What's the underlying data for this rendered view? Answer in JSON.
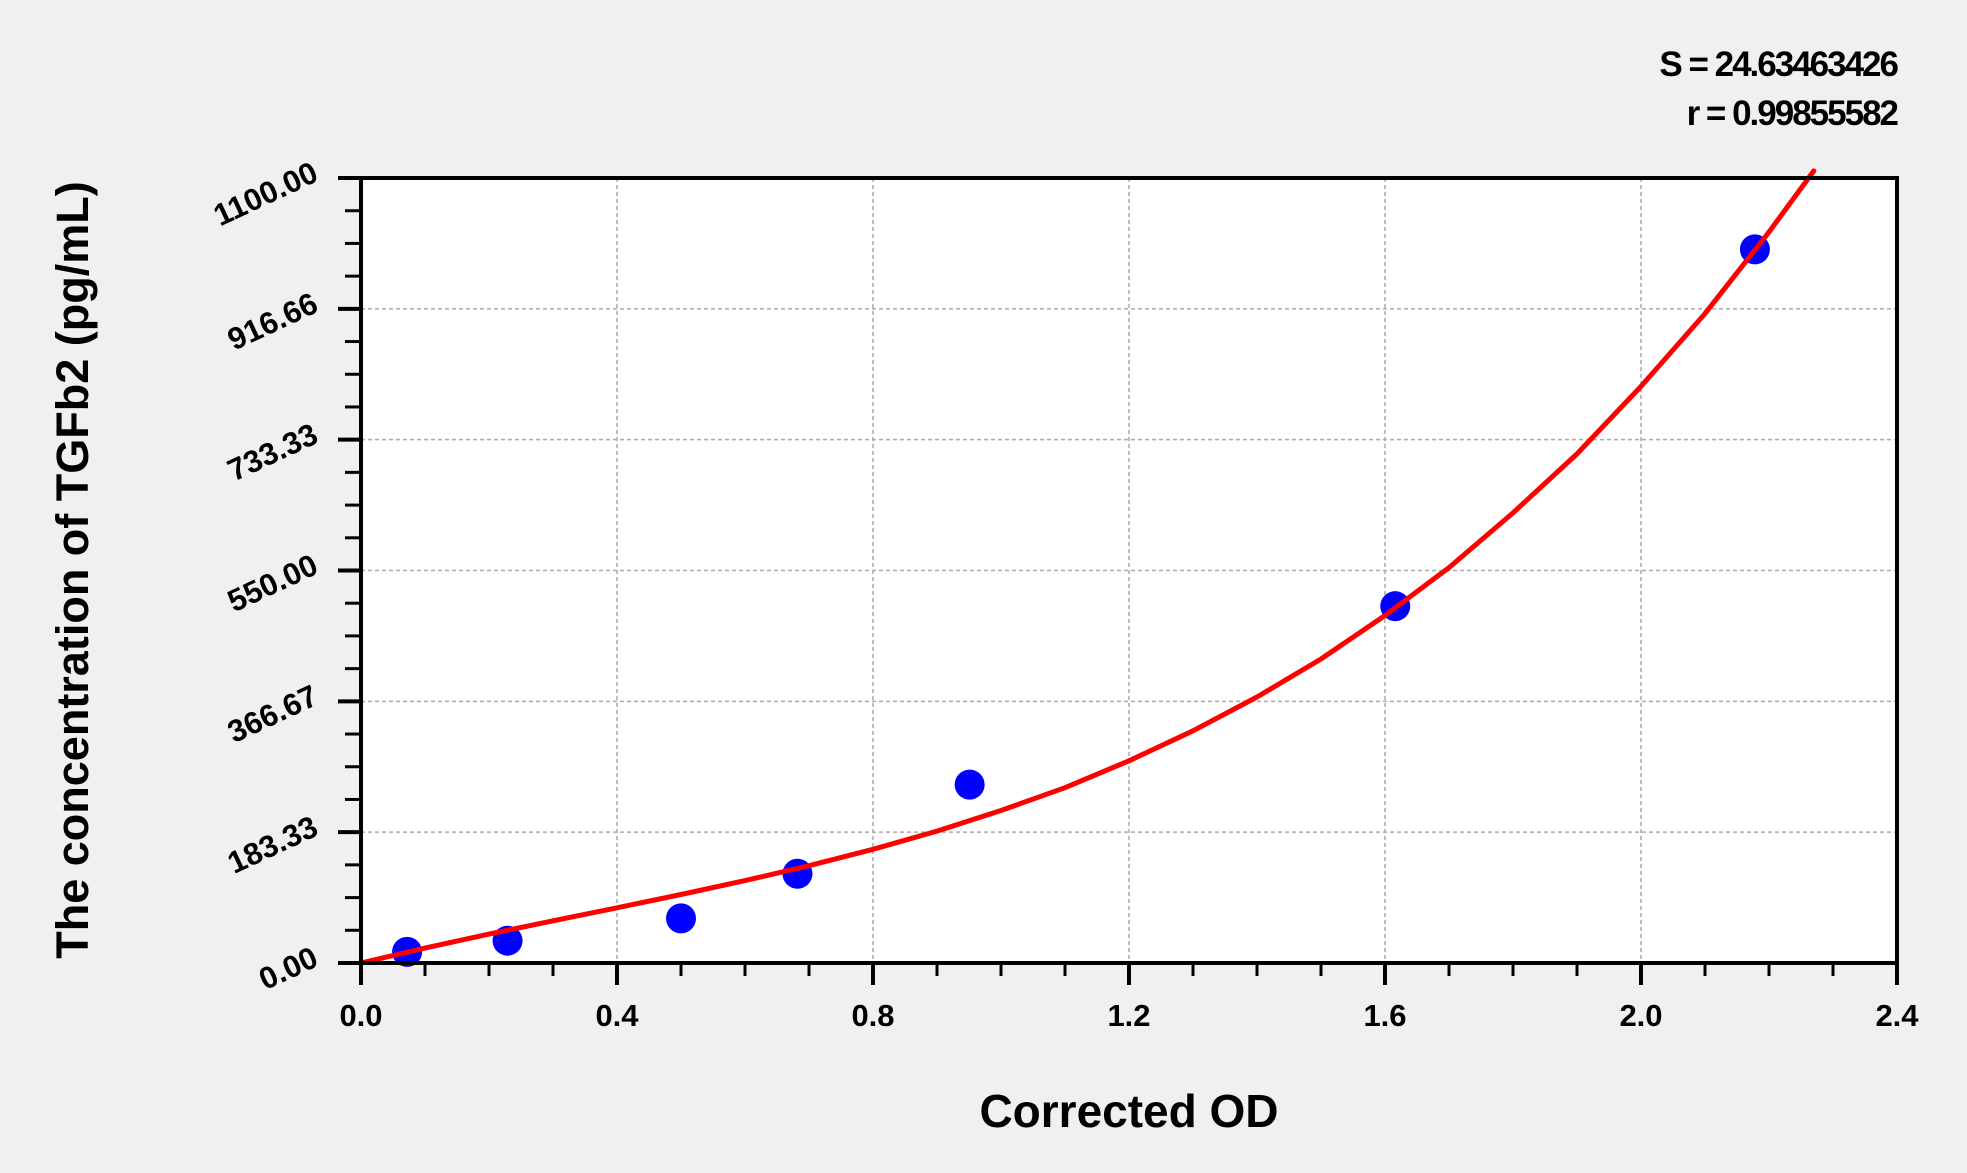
{
  "chart_data": {
    "type": "scatter",
    "title": "",
    "xlabel": "Corrected OD",
    "ylabel": "The concentration of TGFb2 (pg/mL)",
    "xlim": [
      0,
      2.4
    ],
    "ylim": [
      0,
      1100
    ],
    "x_ticks": [
      "0.0",
      "0.4",
      "0.8",
      "1.2",
      "1.6",
      "2.0",
      "2.4"
    ],
    "x_tick_values": [
      0,
      0.4,
      0.8,
      1.2,
      1.6,
      2.0,
      2.4
    ],
    "y_ticks": [
      "0.00",
      "183.33",
      "366.67",
      "550.00",
      "733.33",
      "916.66",
      "1100.00"
    ],
    "y_tick_values": [
      0,
      183.33,
      366.67,
      550,
      733.33,
      916.66,
      1100
    ],
    "grid": true,
    "annotations": {
      "s": "S = 24.63463426",
      "r": "r = 0.99855582"
    },
    "points": {
      "color": "#0000ff",
      "x": [
        0.072,
        0.229,
        0.5,
        0.682,
        0.951,
        1.616,
        2.178
      ],
      "y": [
        15.6,
        31.25,
        62.5,
        125,
        250,
        500,
        1000
      ]
    },
    "fit_curve": {
      "color": "#ff0000",
      "x": [
        0,
        0.1,
        0.2,
        0.3,
        0.4,
        0.5,
        0.6,
        0.7,
        0.8,
        0.9,
        1.0,
        1.1,
        1.2,
        1.3,
        1.4,
        1.5,
        1.6,
        1.7,
        1.8,
        1.9,
        2.0,
        2.1,
        2.2,
        2.27
      ],
      "y": [
        0,
        20.9,
        40.5,
        59.1,
        77.4,
        96.0,
        115.4,
        136.3,
        159.3,
        184.8,
        213.7,
        245.7,
        283.3,
        325.4,
        372.8,
        426.0,
        487.0,
        554.0,
        630.7,
        713.4,
        808.0,
        910.0,
        1024.4,
        1110.0
      ]
    }
  }
}
